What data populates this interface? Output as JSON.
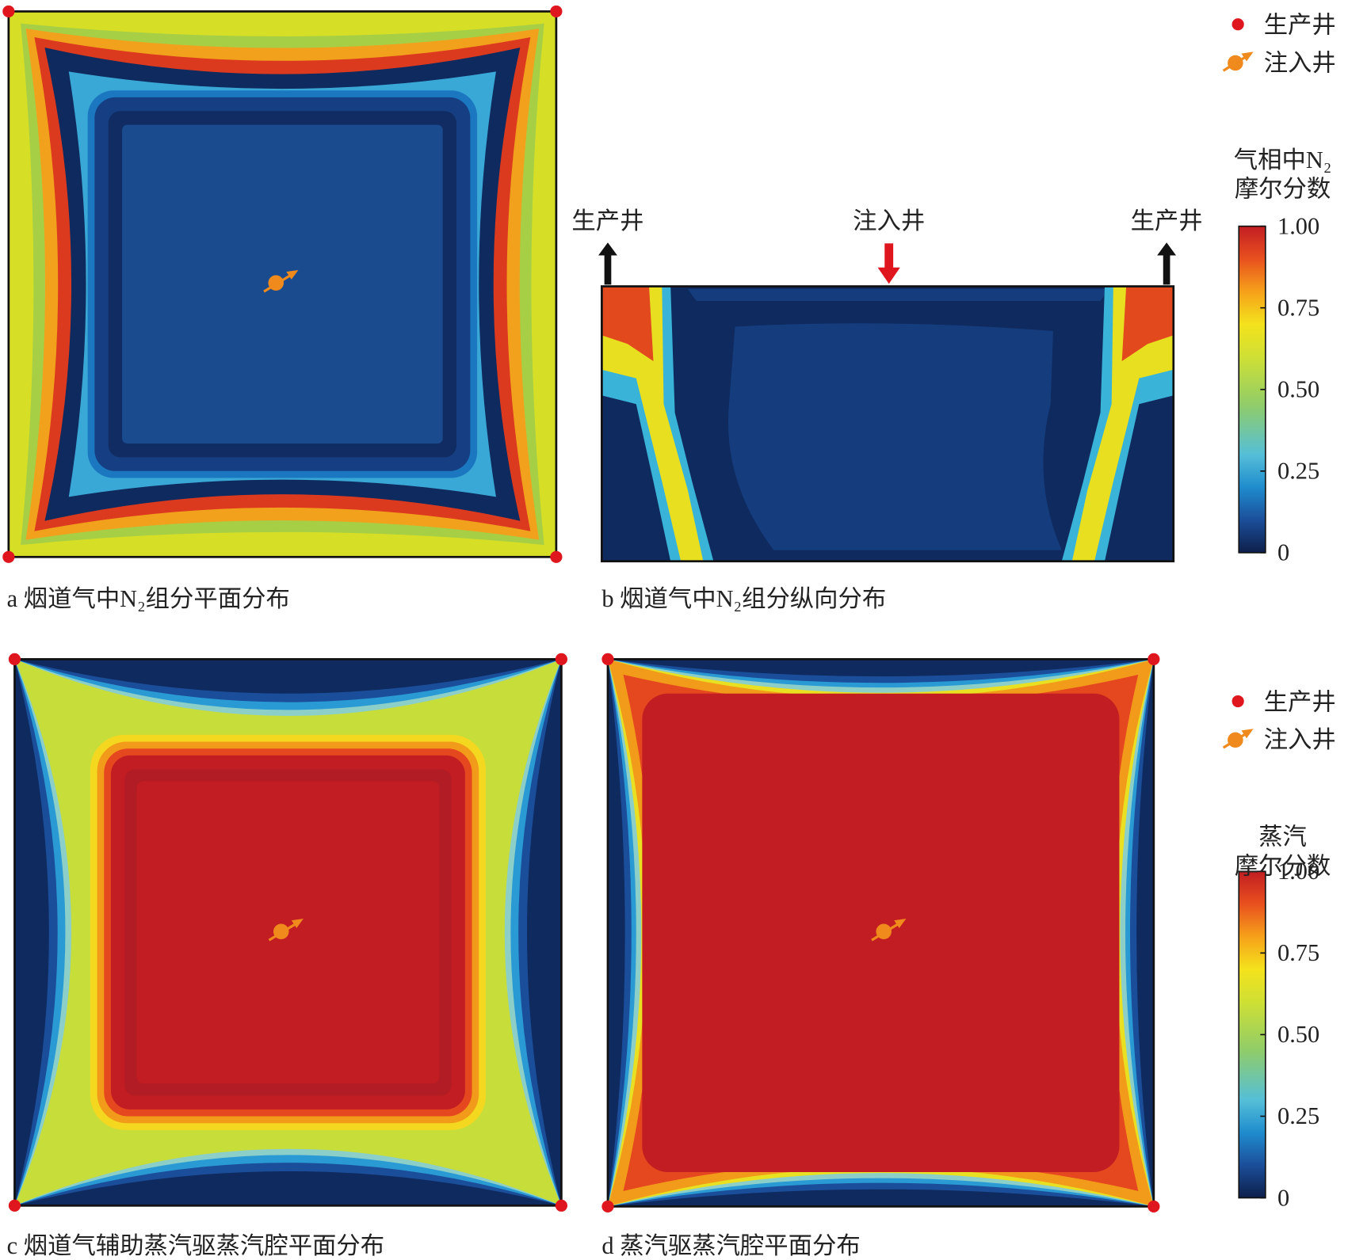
{
  "panels": [
    {
      "caption": "a 烟道气中N₂组分平面分布"
    },
    {
      "caption": "b 烟道气中N₂组分纵向分布",
      "well_labels": [
        "生产井",
        "注入井",
        "生产井"
      ]
    },
    {
      "caption": "c 烟道气辅助蒸汽驱蒸汽腔平面分布"
    },
    {
      "caption": "d 蒸汽驱蒸汽腔平面分布"
    }
  ],
  "legends": [
    {
      "items": [
        "生产井",
        "注入井"
      ],
      "colorbar": {
        "title": [
          "气相中N₂",
          "摩尔分数"
        ],
        "lim": [
          0,
          1
        ],
        "ticks": [
          {
            "value": 1,
            "label": "1.00"
          },
          {
            "value": 0.75,
            "label": "0.75"
          },
          {
            "value": 0.5,
            "label": "0.50"
          },
          {
            "value": 0.25,
            "label": "0.25"
          },
          0
        ]
      }
    },
    {
      "items": [
        "生产井",
        "注入井"
      ],
      "colorbar": {
        "title": [
          "蒸汽",
          "摩尔分数"
        ],
        "lim": [
          0,
          1
        ],
        "ticks": [
          {
            "value": 1,
            "label": "1.00"
          },
          {
            "value": 0.75,
            "label": "0.75"
          },
          {
            "value": 0.5,
            "label": "0.50"
          },
          {
            "value": 0.25,
            "label": "0.25"
          },
          0
        ]
      }
    }
  ]
}
